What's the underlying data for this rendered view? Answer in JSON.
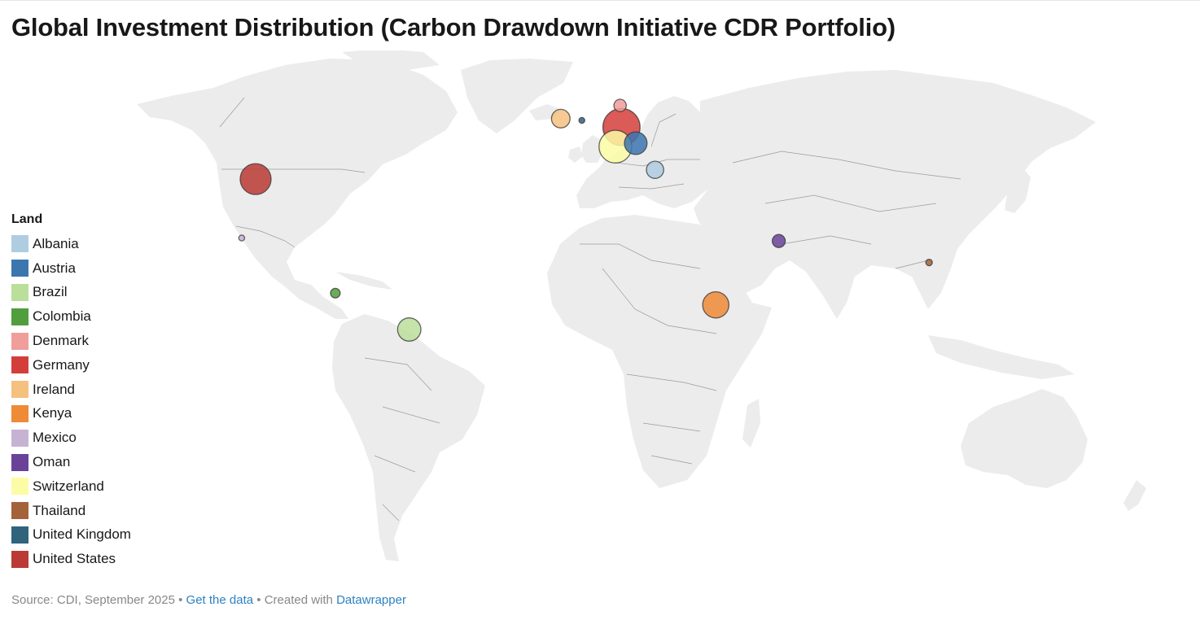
{
  "title": "Global Investment Distribution (Carbon Drawdown Initiative CDR Portfolio)",
  "legend": {
    "title": "Land",
    "items": [
      {
        "label": "Albania",
        "color": "#aecde1"
      },
      {
        "label": "Austria",
        "color": "#3c76af"
      },
      {
        "label": "Brazil",
        "color": "#badf9a"
      },
      {
        "label": "Colombia",
        "color": "#519e3e"
      },
      {
        "label": "Denmark",
        "color": "#ef9e9b"
      },
      {
        "label": "Germany",
        "color": "#d43e3a"
      },
      {
        "label": "Ireland",
        "color": "#f5c17f"
      },
      {
        "label": "Kenya",
        "color": "#ef8a37"
      },
      {
        "label": "Mexico",
        "color": "#c6b3d3"
      },
      {
        "label": "Oman",
        "color": "#6a4399"
      },
      {
        "label": "Switzerland",
        "color": "#fdfca6"
      },
      {
        "label": "Thailand",
        "color": "#a3623a"
      },
      {
        "label": "United Kingdom",
        "color": "#30637c"
      },
      {
        "label": "United States",
        "color": "#bb3a35"
      }
    ]
  },
  "map": {
    "land_color": "#ececec",
    "border_color": "#9a9a9a",
    "markers": [
      {
        "country": "United States",
        "lon": -97.8,
        "lat": 38.9,
        "relative_size": 1.0
      },
      {
        "country": "Mexico",
        "lon": -101.9,
        "lat": 22.8,
        "relative_size": 0.19
      },
      {
        "country": "Colombia",
        "lon": -74.3,
        "lat": 4.6,
        "relative_size": 0.31
      },
      {
        "country": "Brazil",
        "lon": -52.5,
        "lat": -10.5,
        "relative_size": 0.75
      },
      {
        "country": "Ireland",
        "lon": -7.8,
        "lat": 53.2,
        "relative_size": 0.6
      },
      {
        "country": "United Kingdom",
        "lon": -1.6,
        "lat": 52.8,
        "relative_size": 0.19
      },
      {
        "country": "Denmark",
        "lon": 9.7,
        "lat": 56.1,
        "relative_size": 0.4
      },
      {
        "country": "Germany",
        "lon": 10.1,
        "lat": 51.3,
        "relative_size": 1.2
      },
      {
        "country": "Switzerland",
        "lon": 8.3,
        "lat": 46.8,
        "relative_size": 1.06
      },
      {
        "country": "Austria",
        "lon": 14.3,
        "lat": 47.6,
        "relative_size": 0.73
      },
      {
        "country": "Albania",
        "lon": 20.0,
        "lat": 41.2,
        "relative_size": 0.56
      },
      {
        "country": "Oman",
        "lon": 56.5,
        "lat": 21.9,
        "relative_size": 0.42
      },
      {
        "country": "Kenya",
        "lon": 37.9,
        "lat": 0.1,
        "relative_size": 0.85
      },
      {
        "country": "Thailand",
        "lon": 100.8,
        "lat": 15.2,
        "relative_size": 0.21
      }
    ]
  },
  "footer": {
    "source": "Source: CDI, September 2025",
    "separator1": " • ",
    "get_data": "Get the data",
    "separator2": " • Created with ",
    "tool": "Datawrapper"
  }
}
